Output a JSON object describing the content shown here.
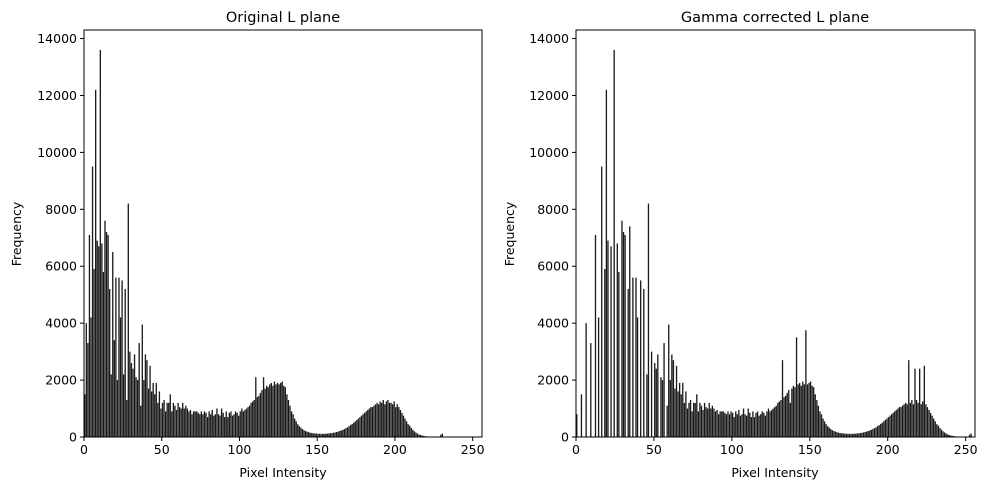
{
  "chart_data": [
    {
      "type": "bar",
      "title": "Original L plane",
      "xlabel": "Pixel Intensity",
      "ylabel": "Frequency",
      "xlim": [
        0,
        256
      ],
      "ylim": [
        0,
        14300
      ],
      "xticks": [
        0,
        50,
        100,
        150,
        200,
        250
      ],
      "yticks": [
        0,
        2000,
        4000,
        6000,
        8000,
        10000,
        12000,
        14000
      ],
      "grid": false,
      "color": "#1a1a1a",
      "values": [
        1500,
        4000,
        3300,
        7100,
        4200,
        9500,
        5900,
        12200,
        6900,
        6700,
        13600,
        6800,
        5800,
        7600,
        7200,
        7100,
        5200,
        2200,
        6500,
        3400,
        5600,
        2000,
        5600,
        4200,
        5500,
        2200,
        5200,
        1300,
        8200,
        3000,
        2600,
        2400,
        2900,
        2100,
        2000,
        3300,
        1100,
        3950,
        2000,
        2900,
        2700,
        1700,
        2500,
        1600,
        1900,
        1500,
        1900,
        1200,
        1600,
        1000,
        1200,
        1300,
        900,
        1200,
        1200,
        1500,
        900,
        1200,
        1100,
        950,
        1200,
        1050,
        1000,
        1200,
        1000,
        1100,
        1000,
        900,
        950,
        800,
        900,
        900,
        900,
        850,
        800,
        900,
        800,
        900,
        850,
        700,
        900,
        800,
        950,
        750,
        800,
        1000,
        800,
        750,
        1000,
        850,
        700,
        900,
        700,
        850,
        900,
        750,
        800,
        900,
        850,
        750,
        900,
        1000,
        900,
        950,
        1000,
        1050,
        1100,
        1200,
        1250,
        1300,
        2100,
        1400,
        1450,
        1550,
        1650,
        2100,
        1700,
        1800,
        1750,
        1850,
        1900,
        1800,
        1950,
        1850,
        1900,
        1850,
        1900,
        1950,
        1800,
        1750,
        1500,
        1300,
        1100,
        900,
        800,
        650,
        550,
        450,
        380,
        330,
        280,
        240,
        210,
        190,
        170,
        150,
        140,
        130,
        125,
        120,
        115,
        115,
        110,
        110,
        110,
        115,
        120,
        125,
        130,
        140,
        150,
        160,
        175,
        190,
        210,
        230,
        250,
        280,
        310,
        340,
        380,
        420,
        460,
        500,
        550,
        600,
        650,
        700,
        750,
        800,
        850,
        900,
        950,
        1000,
        1050,
        1050,
        1100,
        1150,
        1200,
        1150,
        1250,
        1200,
        1300,
        1150,
        1250,
        1300,
        1200,
        1200,
        1150,
        1250,
        1050,
        1150,
        1050,
        950,
        850,
        750,
        650,
        550,
        450,
        400,
        320,
        260,
        200,
        160,
        120,
        90,
        70,
        55,
        40,
        30,
        20,
        15,
        10,
        8,
        5,
        3,
        2,
        1,
        1,
        80,
        120
      ],
      "bar_gap": 0.15
    },
    {
      "type": "bar",
      "title": "Gamma corrected L plane",
      "xlabel": "Pixel Intensity",
      "ylabel": "Frequency",
      "xlim": [
        0,
        256
      ],
      "ylim": [
        0,
        14300
      ],
      "xticks": [
        0,
        50,
        100,
        150,
        200,
        250
      ],
      "yticks": [
        0,
        2000,
        4000,
        6000,
        8000,
        10000,
        12000,
        14000
      ],
      "grid": false,
      "color": "#1a1a1a",
      "values": [
        800,
        0,
        0,
        1500,
        0,
        0,
        4000,
        0,
        0,
        3300,
        0,
        0,
        7100,
        0,
        4200,
        0,
        9500,
        0,
        5900,
        12200,
        6900,
        0,
        6700,
        0,
        13600,
        0,
        6800,
        5800,
        0,
        7600,
        7200,
        7100,
        0,
        5200,
        7400,
        0,
        5600,
        0,
        5600,
        4200,
        0,
        5500,
        0,
        5200,
        0,
        2200,
        8200,
        0,
        3000,
        0,
        2600,
        2400,
        2900,
        0,
        2100,
        2000,
        3300,
        0,
        1100,
        3950,
        2000,
        2900,
        2700,
        1700,
        2500,
        1600,
        1900,
        1500,
        1900,
        1200,
        1600,
        1000,
        1200,
        1300,
        900,
        1200,
        1200,
        1500,
        900,
        1200,
        1100,
        950,
        1200,
        1050,
        1000,
        1200,
        1000,
        1100,
        1000,
        900,
        950,
        800,
        900,
        900,
        900,
        850,
        800,
        900,
        800,
        900,
        850,
        700,
        900,
        800,
        950,
        750,
        800,
        1000,
        800,
        750,
        1000,
        850,
        700,
        900,
        700,
        850,
        900,
        750,
        800,
        900,
        850,
        750,
        900,
        1000,
        900,
        950,
        1000,
        1050,
        1100,
        1200,
        1250,
        1300,
        2700,
        1400,
        1450,
        1550,
        1650,
        1200,
        1700,
        1800,
        1750,
        3500,
        1850,
        1900,
        1800,
        1950,
        1850,
        3750,
        1850,
        1900,
        1950,
        1800,
        1750,
        1500,
        1300,
        1100,
        900,
        800,
        650,
        550,
        450,
        380,
        330,
        280,
        240,
        210,
        190,
        170,
        150,
        140,
        130,
        125,
        120,
        115,
        115,
        110,
        110,
        110,
        115,
        120,
        125,
        130,
        140,
        150,
        160,
        175,
        190,
        210,
        230,
        250,
        280,
        310,
        340,
        380,
        420,
        460,
        500,
        550,
        600,
        650,
        700,
        750,
        800,
        850,
        900,
        950,
        1000,
        1050,
        1050,
        1100,
        1150,
        1200,
        1150,
        2700,
        1200,
        1300,
        1150,
        2400,
        1300,
        1200,
        2400,
        1150,
        1250,
        2500,
        1150,
        1050,
        950,
        850,
        750,
        650,
        550,
        450,
        400,
        320,
        260,
        200,
        160,
        120,
        90,
        70,
        55,
        40,
        30,
        20,
        15,
        10,
        8,
        5,
        3,
        2,
        1,
        1,
        80,
        120
      ],
      "bar_gap": 0.15
    }
  ]
}
